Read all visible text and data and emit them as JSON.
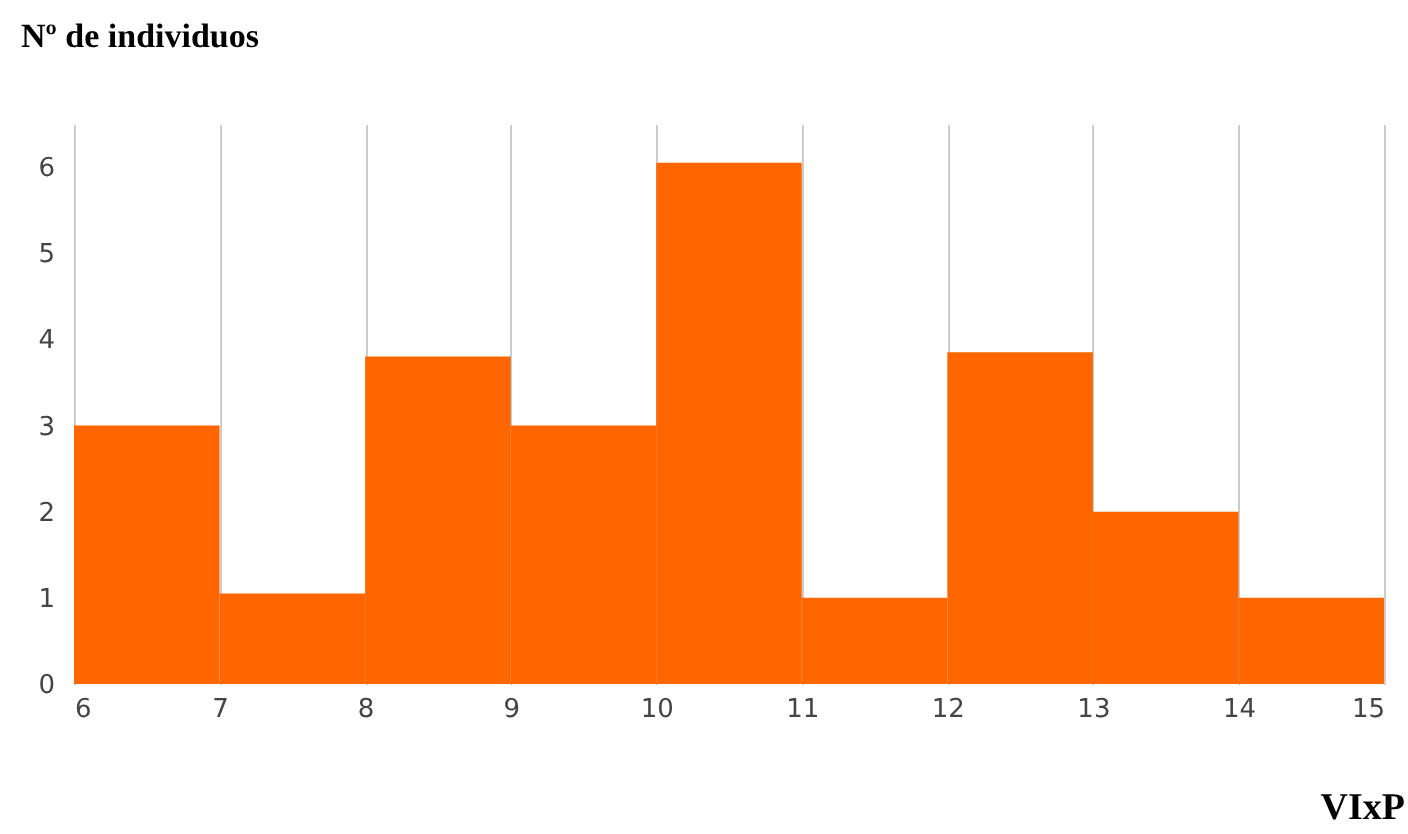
{
  "chart_data": {
    "type": "histogram",
    "ylabel": "Nº de individuos",
    "xlabel": "VIxP",
    "bins": [
      6,
      7,
      8,
      9,
      10,
      11,
      12,
      13,
      14,
      15
    ],
    "values": [
      3,
      1.05,
      3.8,
      3,
      6.05,
      1,
      3.85,
      2,
      1
    ],
    "color": "#ff6600",
    "xlim": [
      6,
      15
    ],
    "xticks": [
      6,
      7,
      8,
      9,
      10,
      11,
      12,
      13,
      14,
      15
    ],
    "ylim": [
      0,
      6.5
    ],
    "yticks": [
      0,
      1,
      2,
      3,
      4,
      5,
      6
    ],
    "grid": "x"
  }
}
